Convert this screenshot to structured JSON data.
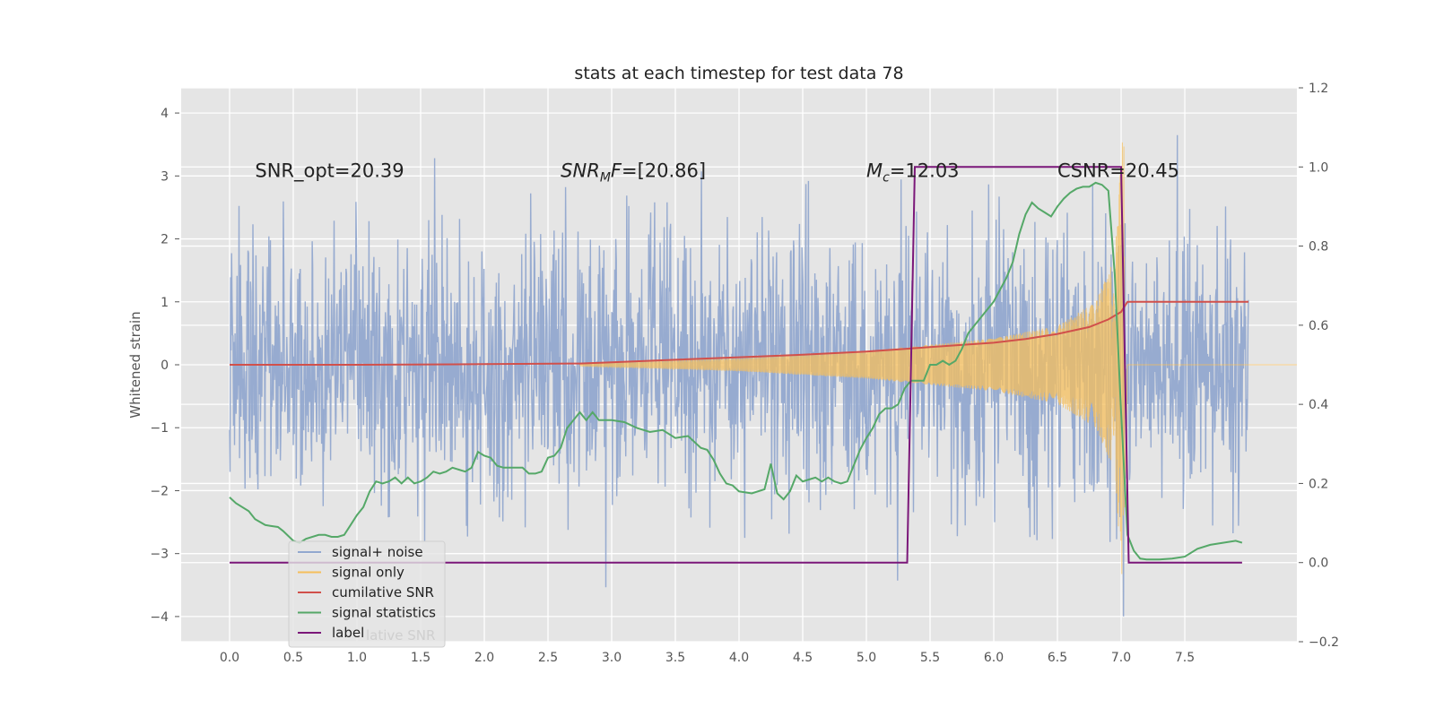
{
  "chart_data": {
    "type": "line",
    "title": "stats at each timestep for test data 78",
    "xlabel": "",
    "ylabel": "Whitened strain",
    "xlim": [
      -0.38,
      8.38
    ],
    "ylim": [
      -4.4,
      4.4
    ],
    "y2lim": [
      -0.2,
      1.2
    ],
    "grid": true,
    "legend_position": "lower-left",
    "x_ticks": [
      "0.0",
      "0.5",
      "1.0",
      "1.5",
      "2.0",
      "2.5",
      "3.0",
      "3.5",
      "4.0",
      "4.5",
      "5.0",
      "5.5",
      "6.0",
      "6.5",
      "7.0",
      "7.5"
    ],
    "y_ticks": [
      "4",
      "3",
      "2",
      "1",
      "0",
      "−1",
      "−2",
      "−3",
      "−4"
    ],
    "y2_ticks": [
      "1.2",
      "1.0",
      "0.8",
      "0.6",
      "0.4",
      "0.2",
      "0.0",
      "−0.2"
    ],
    "annotations": [
      {
        "text": "SNR_opt=20.39",
        "x": 0.2,
        "y": 3.1
      },
      {
        "text": "=[20.86]",
        "math_base": "SNR",
        "math_sub": "M",
        "math_tail": "F",
        "x": 2.6,
        "y": 3.1
      },
      {
        "text": "=12.03",
        "math_base": "M",
        "math_sub": "c",
        "x": 5.0,
        "y": 3.1
      },
      {
        "text": "CSNR=20.45",
        "x": 6.5,
        "y": 3.1
      }
    ],
    "legend_ghost_text": "lative SNR",
    "series": [
      {
        "name": "signal+ noise",
        "color": "#92a8cf",
        "axis": "left",
        "t_range": [
          0.0,
          8.0
        ],
        "n_points": 2048,
        "noise_sigma": 1.0,
        "max": 3.65,
        "min": -4.0
      },
      {
        "name": "signal only",
        "color": "#f5bf5c",
        "axis": "left",
        "t_start": 2.75,
        "t_merger": 7.02,
        "peak": 3.9,
        "description_values": [
          [
            2.75,
            0.02
          ],
          [
            4.0,
            0.1
          ],
          [
            5.0,
            0.22
          ],
          [
            6.0,
            0.42
          ],
          [
            6.5,
            0.62
          ],
          [
            6.8,
            1.0
          ],
          [
            6.95,
            1.7
          ],
          [
            7.02,
            3.9
          ],
          [
            7.05,
            0.0
          ]
        ]
      },
      {
        "name": "cumilative SNR",
        "color": "#d1504b",
        "axis": "left",
        "x": [
          0.0,
          1.0,
          2.0,
          2.75,
          3.0,
          3.5,
          4.0,
          4.5,
          5.0,
          5.5,
          6.0,
          6.25,
          6.5,
          6.75,
          6.9,
          7.0,
          7.05,
          7.5,
          8.0
        ],
        "y": [
          0.0,
          0.0,
          0.01,
          0.02,
          0.04,
          0.08,
          0.12,
          0.16,
          0.21,
          0.28,
          0.35,
          0.41,
          0.49,
          0.6,
          0.72,
          0.84,
          1.0,
          1.0,
          1.0
        ]
      },
      {
        "name": "signal statistics",
        "color": "#55a868",
        "axis": "right",
        "x": [
          0.0,
          0.05,
          0.15,
          0.2,
          0.28,
          0.32,
          0.38,
          0.42,
          0.5,
          0.55,
          0.6,
          0.7,
          0.75,
          0.8,
          0.85,
          0.9,
          0.95,
          1.0,
          1.05,
          1.1,
          1.15,
          1.2,
          1.25,
          1.3,
          1.35,
          1.4,
          1.45,
          1.5,
          1.55,
          1.6,
          1.65,
          1.7,
          1.75,
          1.8,
          1.85,
          1.9,
          1.95,
          2.0,
          2.05,
          2.1,
          2.15,
          2.2,
          2.25,
          2.3,
          2.35,
          2.4,
          2.45,
          2.5,
          2.55,
          2.6,
          2.65,
          2.7,
          2.75,
          2.8,
          2.85,
          2.9,
          3.0,
          3.1,
          3.2,
          3.3,
          3.4,
          3.5,
          3.6,
          3.7,
          3.75,
          3.8,
          3.85,
          3.9,
          3.95,
          4.0,
          4.1,
          4.2,
          4.25,
          4.3,
          4.35,
          4.4,
          4.45,
          4.5,
          4.55,
          4.6,
          4.65,
          4.7,
          4.75,
          4.8,
          4.85,
          4.9,
          4.95,
          5.0,
          5.05,
          5.1,
          5.15,
          5.2,
          5.25,
          5.3,
          5.35,
          5.4,
          5.45,
          5.5,
          5.55,
          5.6,
          5.65,
          5.7,
          5.75,
          5.8,
          5.85,
          5.9,
          5.95,
          6.0,
          6.05,
          6.1,
          6.15,
          6.2,
          6.25,
          6.3,
          6.35,
          6.4,
          6.45,
          6.5,
          6.55,
          6.6,
          6.65,
          6.7,
          6.75,
          6.8,
          6.85,
          6.9,
          6.95,
          7.0,
          7.05,
          7.1,
          7.15,
          7.2,
          7.3,
          7.4,
          7.5,
          7.6,
          7.7,
          7.8,
          7.9,
          7.95
        ],
        "y": [
          0.165,
          0.15,
          0.13,
          0.11,
          0.095,
          0.093,
          0.09,
          0.08,
          0.055,
          0.05,
          0.06,
          0.07,
          0.07,
          0.065,
          0.065,
          0.07,
          0.095,
          0.12,
          0.14,
          0.18,
          0.205,
          0.2,
          0.205,
          0.215,
          0.2,
          0.215,
          0.2,
          0.205,
          0.215,
          0.23,
          0.225,
          0.23,
          0.24,
          0.235,
          0.23,
          0.24,
          0.28,
          0.27,
          0.265,
          0.245,
          0.24,
          0.24,
          0.24,
          0.24,
          0.225,
          0.225,
          0.23,
          0.265,
          0.27,
          0.29,
          0.34,
          0.36,
          0.38,
          0.36,
          0.38,
          0.36,
          0.36,
          0.355,
          0.34,
          0.33,
          0.335,
          0.315,
          0.32,
          0.29,
          0.285,
          0.26,
          0.225,
          0.2,
          0.195,
          0.18,
          0.175,
          0.185,
          0.25,
          0.175,
          0.16,
          0.18,
          0.22,
          0.205,
          0.21,
          0.215,
          0.205,
          0.215,
          0.205,
          0.2,
          0.205,
          0.245,
          0.285,
          0.315,
          0.34,
          0.375,
          0.39,
          0.39,
          0.4,
          0.44,
          0.46,
          0.46,
          0.46,
          0.5,
          0.5,
          0.51,
          0.5,
          0.51,
          0.54,
          0.58,
          0.6,
          0.62,
          0.64,
          0.66,
          0.69,
          0.72,
          0.76,
          0.83,
          0.88,
          0.91,
          0.895,
          0.885,
          0.875,
          0.9,
          0.92,
          0.935,
          0.945,
          0.95,
          0.95,
          0.96,
          0.955,
          0.94,
          0.73,
          0.38,
          0.07,
          0.03,
          0.01,
          0.008,
          0.008,
          0.01,
          0.015,
          0.035,
          0.045,
          0.05,
          0.055,
          0.05
        ]
      },
      {
        "name": "label",
        "color": "#7b1779",
        "axis": "right",
        "x": [
          0.0,
          5.32,
          5.38,
          7.0,
          7.06,
          7.95
        ],
        "y": [
          0.0,
          0.0,
          1.0,
          1.0,
          0.0,
          0.0
        ]
      }
    ]
  }
}
